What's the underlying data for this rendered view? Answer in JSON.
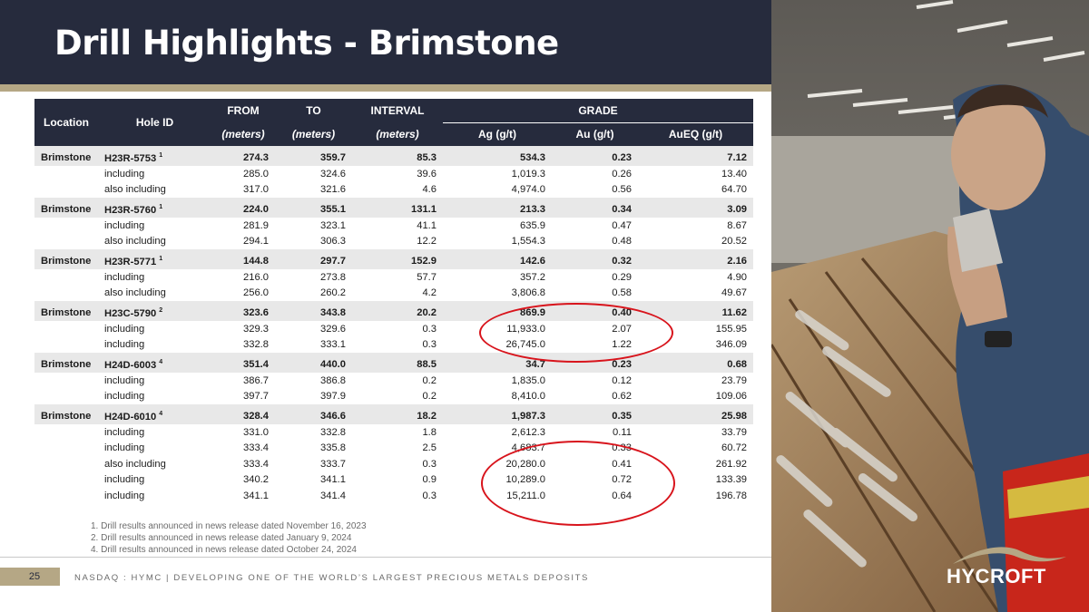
{
  "slide": {
    "title": "Drill Highlights - Brimstone",
    "page_number": "25",
    "footer": "NASDAQ : HYMC  |  DEVELOPING ONE OF THE WORLD’S LARGEST PRECIOUS METALS DEPOSITS",
    "logo_text": "HYCROFT"
  },
  "table": {
    "headers": {
      "location": "Location",
      "hole_id": "Hole ID",
      "from": "FROM",
      "to": "TO",
      "interval": "INTERVAL",
      "grade": "GRADE",
      "from_unit": "(meters)",
      "to_unit": "(meters)",
      "interval_unit": "(meters)",
      "ag": "Ag (g/t)",
      "au": "Au (g/t)",
      "aueq": "AuEQ (g/t)"
    },
    "holes": [
      {
        "location": "Brimstone",
        "hole_id": "H23R-5753",
        "note": "1",
        "from": "274.3",
        "to": "359.7",
        "interval": "85.3",
        "ag": "534.3",
        "au": "0.23",
        "aueq": "7.12",
        "subs": [
          {
            "label": "including",
            "from": "285.0",
            "to": "324.6",
            "interval": "39.6",
            "ag": "1,019.3",
            "au": "0.26",
            "aueq": "13.40"
          },
          {
            "label": "also including",
            "from": "317.0",
            "to": "321.6",
            "interval": "4.6",
            "ag": "4,974.0",
            "au": "0.56",
            "aueq": "64.70"
          }
        ]
      },
      {
        "location": "Brimstone",
        "hole_id": "H23R-5760",
        "note": "1",
        "from": "224.0",
        "to": "355.1",
        "interval": "131.1",
        "ag": "213.3",
        "au": "0.34",
        "aueq": "3.09",
        "subs": [
          {
            "label": "including",
            "from": "281.9",
            "to": "323.1",
            "interval": "41.1",
            "ag": "635.9",
            "au": "0.47",
            "aueq": "8.67"
          },
          {
            "label": "also including",
            "from": "294.1",
            "to": "306.3",
            "interval": "12.2",
            "ag": "1,554.3",
            "au": "0.48",
            "aueq": "20.52"
          }
        ]
      },
      {
        "location": "Brimstone",
        "hole_id": "H23R-5771",
        "note": "1",
        "from": "144.8",
        "to": "297.7",
        "interval": "152.9",
        "ag": "142.6",
        "au": "0.32",
        "aueq": "2.16",
        "subs": [
          {
            "label": "including",
            "from": "216.0",
            "to": "273.8",
            "interval": "57.7",
            "ag": "357.2",
            "au": "0.29",
            "aueq": "4.90"
          },
          {
            "label": "also including",
            "from": "256.0",
            "to": "260.2",
            "interval": "4.2",
            "ag": "3,806.8",
            "au": "0.58",
            "aueq": "49.67"
          }
        ]
      },
      {
        "location": "Brimstone",
        "hole_id": "H23C-5790",
        "note": "2",
        "from": "323.6",
        "to": "343.8",
        "interval": "20.2",
        "ag": "869.9",
        "au": "0.40",
        "aueq": "11.62",
        "subs": [
          {
            "label": "including",
            "from": "329.3",
            "to": "329.6",
            "interval": "0.3",
            "ag": "11,933.0",
            "au": "2.07",
            "aueq": "155.95"
          },
          {
            "label": "including",
            "from": "332.8",
            "to": "333.1",
            "interval": "0.3",
            "ag": "26,745.0",
            "au": "1.22",
            "aueq": "346.09"
          }
        ]
      },
      {
        "location": "Brimstone",
        "hole_id": "H24D-6003",
        "note": "4",
        "from": "351.4",
        "to": "440.0",
        "interval": "88.5",
        "ag": "34.7",
        "au": "0.23",
        "aueq": "0.68",
        "subs": [
          {
            "label": "including",
            "from": "386.7",
            "to": "386.8",
            "interval": "0.2",
            "ag": "1,835.0",
            "au": "0.12",
            "aueq": "23.79"
          },
          {
            "label": "including",
            "from": "397.7",
            "to": "397.9",
            "interval": "0.2",
            "ag": "8,410.0",
            "au": "0.62",
            "aueq": "109.06"
          }
        ]
      },
      {
        "location": "Brimstone",
        "hole_id": "H24D-6010",
        "note": "4",
        "from": "328.4",
        "to": "346.6",
        "interval": "18.2",
        "ag": "1,987.3",
        "au": "0.35",
        "aueq": "25.98",
        "subs": [
          {
            "label": "including",
            "from": "331.0",
            "to": "332.8",
            "interval": "1.8",
            "ag": "2,612.3",
            "au": "0.11",
            "aueq": "33.79"
          },
          {
            "label": "including",
            "from": "333.4",
            "to": "335.8",
            "interval": "2.5",
            "ag": "4,683.7",
            "au": "0.33",
            "aueq": "60.72"
          },
          {
            "label": "also including",
            "from": "333.4",
            "to": "333.7",
            "interval": "0.3",
            "ag": "20,280.0",
            "au": "0.41",
            "aueq": "261.92"
          },
          {
            "label": "including",
            "from": "340.2",
            "to": "341.1",
            "interval": "0.9",
            "ag": "10,289.0",
            "au": "0.72",
            "aueq": "133.39"
          },
          {
            "label": "including",
            "from": "341.1",
            "to": "341.4",
            "interval": "0.3",
            "ag": "15,211.0",
            "au": "0.64",
            "aueq": "196.78"
          }
        ]
      }
    ]
  },
  "footnotes": [
    "1.  Drill results announced in news release dated November 16, 2023",
    "2.  Drill results announced in news release dated January 9, 2024",
    "4.  Drill results announced in news release dated October 24, 2024"
  ],
  "colors": {
    "navy": "#262b3d",
    "gold": "#b5a785",
    "highlight_red": "#d8141c",
    "row_shade": "#e8e8e8"
  }
}
